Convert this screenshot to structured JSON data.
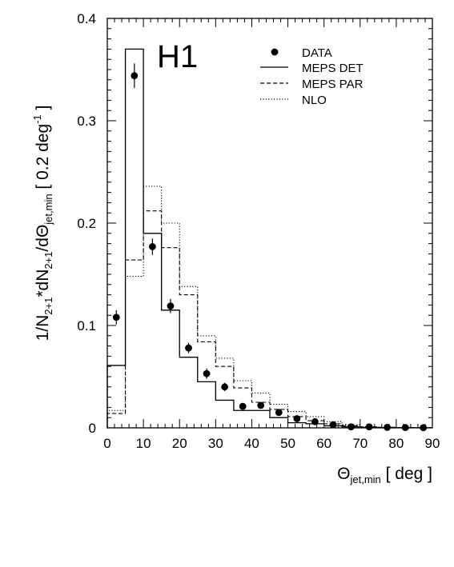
{
  "chart_data": {
    "type": "line",
    "panel_label": "H1",
    "xlabel": {
      "symbol": "Θ",
      "subscript": "jet,min",
      "unit": " [ deg ]"
    },
    "ylabel": {
      "p1": "1/N",
      "s1": "2+1",
      "p2": "*dN",
      "s2": "2+1",
      "p3": "/dΘ",
      "s3": "jet,min",
      "p4": " [ 0.2 deg",
      "sup": "-1",
      "p5": " ]"
    },
    "xlim": [
      0,
      90
    ],
    "ylim": [
      0,
      0.4
    ],
    "x_ticks": [
      0,
      10,
      20,
      30,
      40,
      50,
      60,
      70,
      80,
      90
    ],
    "y_ticks": [
      0,
      0.1,
      0.2,
      0.3,
      0.4
    ],
    "y_tick_labels": [
      "0",
      "0.1",
      "0.2",
      "0.3",
      "0.4"
    ],
    "bin_edges": [
      0,
      5,
      10,
      15,
      20,
      25,
      30,
      35,
      40,
      45,
      50,
      55,
      60,
      65,
      70,
      75,
      80,
      85,
      90
    ],
    "series": [
      {
        "name": "DATA",
        "style": "points",
        "x": [
          2.5,
          7.5,
          12.5,
          17.5,
          22.5,
          27.5,
          32.5,
          37.5,
          42.5,
          47.5,
          52.5,
          57.5,
          62.5,
          67.5,
          72.5,
          77.5,
          82.5,
          87.5
        ],
        "y": [
          0.108,
          0.344,
          0.177,
          0.119,
          0.078,
          0.053,
          0.04,
          0.021,
          0.022,
          0.015,
          0.009,
          0.006,
          0.003,
          0.001,
          0.001,
          0.0005,
          0.0003,
          0.0002
        ],
        "err": [
          0.007,
          0.012,
          0.008,
          0.007,
          0.005,
          0.005,
          0.004,
          0.003,
          0.003,
          0.002,
          0.002,
          0.002,
          0.001,
          0.001,
          0.001,
          0.0005,
          0.0003,
          0.0002
        ]
      },
      {
        "name": "MEPS DET",
        "style": "solid",
        "values": [
          0.061,
          0.37,
          0.19,
          0.115,
          0.069,
          0.045,
          0.027,
          0.017,
          0.017,
          0.01,
          0.005,
          0.004,
          0.002,
          0.001,
          0.0005,
          0.0003,
          0.0002,
          0.0001
        ]
      },
      {
        "name": "MEPS PAR",
        "style": "dashed",
        "values": [
          0.014,
          0.164,
          0.212,
          0.176,
          0.13,
          0.084,
          0.06,
          0.039,
          0.025,
          0.018,
          0.011,
          0.007,
          0.004,
          0.002,
          0.001,
          0.0005,
          0.0003,
          0.0002
        ]
      },
      {
        "name": "NLO",
        "style": "dotted",
        "values": [
          0.017,
          0.148,
          0.236,
          0.2,
          0.138,
          0.09,
          0.068,
          0.046,
          0.034,
          0.023,
          0.016,
          0.011,
          0.006,
          0.003,
          0.001,
          0.0006,
          0.0003,
          0.0002
        ]
      }
    ],
    "legend": {
      "position": "top-right",
      "entries": [
        "DATA",
        "MEPS DET",
        "MEPS PAR",
        "NLO"
      ]
    },
    "grid": false
  }
}
